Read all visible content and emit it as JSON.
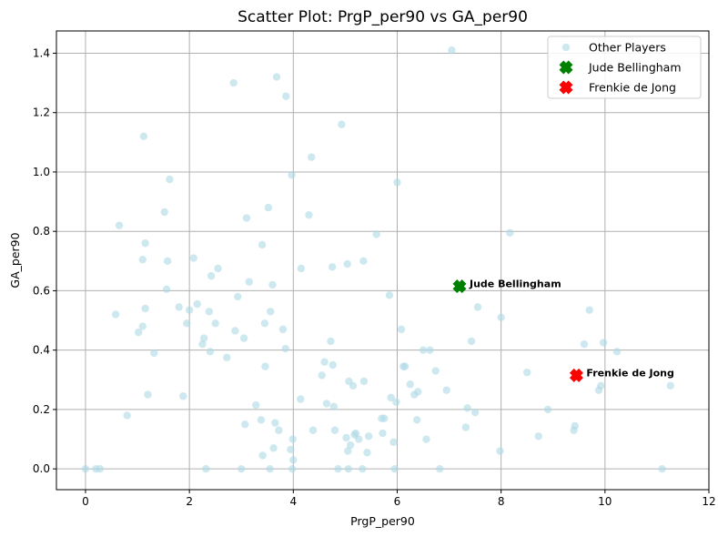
{
  "chart_data": {
    "type": "scatter",
    "title": "Scatter Plot: PrgP_per90 vs GA_per90",
    "xlabel": "PrgP_per90",
    "ylabel": "GA_per90",
    "xlim": [
      -0.56,
      12
    ],
    "ylim": [
      -0.07,
      1.475
    ],
    "xticks": [
      "0",
      "2",
      "4",
      "6",
      "8",
      "10",
      "12"
    ],
    "yticks": [
      "0.0",
      "0.2",
      "0.4",
      "0.6",
      "0.8",
      "1.0",
      "1.2",
      "1.4"
    ],
    "grid": true,
    "legend_position": "top-right",
    "series": [
      {
        "name": "Other Players",
        "color": "#add8e6",
        "marker": "circle",
        "points": [
          [
            0,
            0
          ],
          [
            0.2,
            0
          ],
          [
            0.28,
            0
          ],
          [
            0.58,
            0.52
          ],
          [
            0.65,
            0.82
          ],
          [
            0.8,
            0.18
          ],
          [
            1.02,
            0.46
          ],
          [
            1.1,
            0.48
          ],
          [
            1.1,
            0.705
          ],
          [
            1.12,
            1.12
          ],
          [
            1.15,
            0.76
          ],
          [
            1.15,
            0.54
          ],
          [
            1.2,
            0.25
          ],
          [
            1.32,
            0.39
          ],
          [
            1.52,
            0.865
          ],
          [
            1.56,
            0.605
          ],
          [
            1.58,
            0.7
          ],
          [
            1.62,
            0.975
          ],
          [
            1.8,
            0.545
          ],
          [
            1.88,
            0.245
          ],
          [
            1.95,
            0.49
          ],
          [
            2.0,
            0.535
          ],
          [
            2.08,
            0.71
          ],
          [
            2.15,
            0.555
          ],
          [
            2.25,
            0.42
          ],
          [
            2.28,
            0.44
          ],
          [
            2.32,
            0
          ],
          [
            2.38,
            0.53
          ],
          [
            2.4,
            0.395
          ],
          [
            2.42,
            0.65
          ],
          [
            2.5,
            0.49
          ],
          [
            2.55,
            0.675
          ],
          [
            2.72,
            0.375
          ],
          [
            2.85,
            1.3
          ],
          [
            2.88,
            0.465
          ],
          [
            2.93,
            0.58
          ],
          [
            3.0,
            0
          ],
          [
            3.05,
            0.44
          ],
          [
            3.07,
            0.15
          ],
          [
            3.1,
            0.845
          ],
          [
            3.15,
            0.63
          ],
          [
            3.28,
            0.215
          ],
          [
            3.38,
            0.165
          ],
          [
            3.4,
            0.755
          ],
          [
            3.41,
            0.045
          ],
          [
            3.45,
            0.49
          ],
          [
            3.46,
            0.345
          ],
          [
            3.52,
            0.88
          ],
          [
            3.55,
            0
          ],
          [
            3.56,
            0.53
          ],
          [
            3.6,
            0.62
          ],
          [
            3.62,
            0.07
          ],
          [
            3.65,
            0.155
          ],
          [
            3.68,
            1.32
          ],
          [
            3.72,
            0.13
          ],
          [
            3.8,
            0.47
          ],
          [
            3.85,
            0.405
          ],
          [
            3.86,
            1.255
          ],
          [
            3.95,
            0.065
          ],
          [
            3.97,
            0.99
          ],
          [
            3.98,
            0
          ],
          [
            3.99,
            0.1
          ],
          [
            4.0,
            0.03
          ],
          [
            4.14,
            0.235
          ],
          [
            4.15,
            0.675
          ],
          [
            4.3,
            0.855
          ],
          [
            4.35,
            1.05
          ],
          [
            4.38,
            0.13
          ],
          [
            4.55,
            0.315
          ],
          [
            4.6,
            0.36
          ],
          [
            4.64,
            0.22
          ],
          [
            4.72,
            0.43
          ],
          [
            4.75,
            0.68
          ],
          [
            4.76,
            0.35
          ],
          [
            4.78,
            0.21
          ],
          [
            4.8,
            0.13
          ],
          [
            4.86,
            0
          ],
          [
            4.93,
            1.16
          ],
          [
            5.02,
            0.105
          ],
          [
            5.04,
            0.69
          ],
          [
            5.05,
            0.06
          ],
          [
            5.06,
            0
          ],
          [
            5.07,
            0.295
          ],
          [
            5.1,
            0.08
          ],
          [
            5.15,
            0.28
          ],
          [
            5.18,
            0.115
          ],
          [
            5.2,
            0.12
          ],
          [
            5.26,
            0.1
          ],
          [
            5.33,
            0
          ],
          [
            5.35,
            0.7
          ],
          [
            5.36,
            0.295
          ],
          [
            5.42,
            0.055
          ],
          [
            5.45,
            0.11
          ],
          [
            5.6,
            0.79
          ],
          [
            5.7,
            0.17
          ],
          [
            5.75,
            0.17
          ],
          [
            5.72,
            0.12
          ],
          [
            5.85,
            0.585
          ],
          [
            5.88,
            0.24
          ],
          [
            5.93,
            0.09
          ],
          [
            5.95,
            0
          ],
          [
            5.98,
            0.225
          ],
          [
            6.0,
            0.965
          ],
          [
            6.08,
            0.47
          ],
          [
            6.12,
            0.345
          ],
          [
            6.15,
            0.345
          ],
          [
            6.25,
            0.285
          ],
          [
            6.33,
            0.25
          ],
          [
            6.38,
            0.165
          ],
          [
            6.4,
            0.26
          ],
          [
            6.5,
            0.4
          ],
          [
            6.56,
            0.1
          ],
          [
            6.63,
            0.4
          ],
          [
            6.74,
            0.33
          ],
          [
            6.82,
            0
          ],
          [
            6.95,
            0.265
          ],
          [
            7.05,
            1.41
          ],
          [
            7.32,
            0.14
          ],
          [
            7.35,
            0.205
          ],
          [
            7.43,
            0.43
          ],
          [
            7.5,
            0.19
          ],
          [
            7.55,
            0.545
          ],
          [
            7.98,
            0.06
          ],
          [
            8.0,
            0.51
          ],
          [
            8.17,
            0.795
          ],
          [
            8.5,
            0.325
          ],
          [
            8.72,
            0.11
          ],
          [
            8.9,
            0.2
          ],
          [
            9.4,
            0.13
          ],
          [
            9.42,
            0.145
          ],
          [
            9.6,
            0.42
          ],
          [
            9.7,
            0.535
          ],
          [
            9.88,
            0.265
          ],
          [
            9.92,
            0.28
          ],
          [
            9.97,
            0.425
          ],
          [
            10.23,
            0.395
          ],
          [
            11.1,
            0
          ],
          [
            11.26,
            0.28
          ]
        ]
      },
      {
        "name": "Jude Bellingham",
        "color": "#008000",
        "marker": "X",
        "points": [
          [
            7.2,
            0.615
          ]
        ],
        "annotation": "Jude Bellingham"
      },
      {
        "name": "Frenkie de Jong",
        "color": "#ff0000",
        "marker": "X",
        "points": [
          [
            9.45,
            0.315
          ]
        ],
        "annotation": "Frenkie de Jong"
      }
    ]
  }
}
